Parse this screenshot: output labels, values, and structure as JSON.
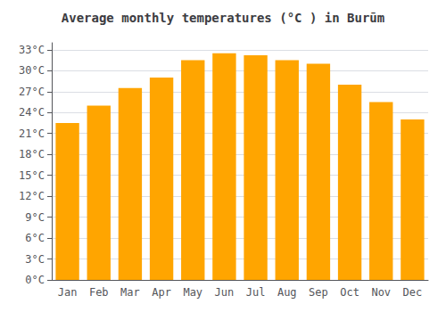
{
  "chart_data": {
    "type": "bar",
    "title": "Average monthly temperatures (°C ) in Burūm",
    "categories": [
      "Jan",
      "Feb",
      "Mar",
      "Apr",
      "May",
      "Jun",
      "Jul",
      "Aug",
      "Sep",
      "Oct",
      "Nov",
      "Dec"
    ],
    "values": [
      22.5,
      25.0,
      27.5,
      29.0,
      31.5,
      32.5,
      32.2,
      31.5,
      31.0,
      28.0,
      25.5,
      23.0
    ],
    "color": "#FFA500",
    "ylim": [
      0,
      34
    ],
    "yticks": [
      {
        "value": 0,
        "label": "0°C"
      },
      {
        "value": 3,
        "label": "3°C"
      },
      {
        "value": 6,
        "label": "6°C"
      },
      {
        "value": 9,
        "label": "9°C"
      },
      {
        "value": 12,
        "label": "12°C"
      },
      {
        "value": 15,
        "label": "15°C"
      },
      {
        "value": 18,
        "label": "18°C"
      },
      {
        "value": 21,
        "label": "21°C"
      },
      {
        "value": 24,
        "label": "24°C"
      },
      {
        "value": 27,
        "label": "27°C"
      },
      {
        "value": 30,
        "label": "30°C"
      },
      {
        "value": 33,
        "label": "33°C"
      }
    ],
    "grid": true
  }
}
